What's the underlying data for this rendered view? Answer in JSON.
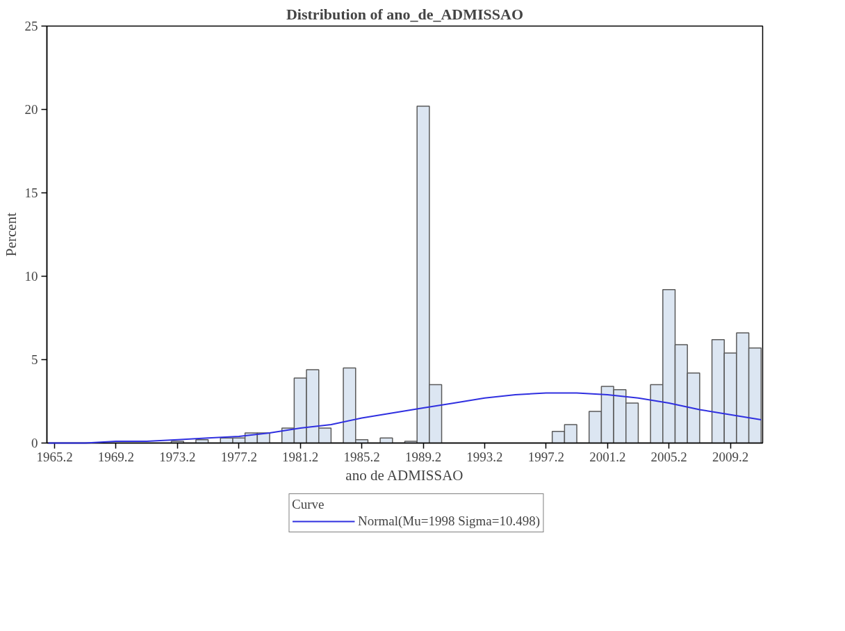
{
  "chart_data": {
    "type": "histogram",
    "title": "Distribution of ano_de_ADMISSAO",
    "xlabel": "ano de ADMISSAO",
    "ylabel": "Percent",
    "legend_title": "Curve",
    "xlim": [
      1964.7,
      2011.3
    ],
    "ylim": [
      0,
      25
    ],
    "xticks": [
      1965.2,
      1969.2,
      1973.2,
      1977.2,
      1981.2,
      1985.2,
      1989.2,
      1993.2,
      1997.2,
      2001.2,
      2005.2,
      2009.2
    ],
    "yticks": [
      0,
      5,
      10,
      15,
      20,
      25
    ],
    "grid": false,
    "legend": "bottom",
    "series": [
      {
        "color": "#dce6f2",
        "bins": [
          1964.8,
          1965.6,
          1966.4,
          1967.2,
          1968.0,
          1968.8,
          1969.6,
          1970.4,
          1971.2,
          1972.0,
          1972.8,
          1973.6,
          1974.4,
          1975.2,
          1976.0,
          1976.8,
          1977.6,
          1978.4,
          1979.2,
          1980.0,
          1980.8,
          1981.6,
          1982.4,
          1983.2,
          1984.0,
          1984.8,
          1985.6,
          1986.4,
          1987.2,
          1988.0,
          1988.8,
          1989.6,
          1990.4,
          1991.2,
          1992.0,
          1992.8,
          1993.6,
          1994.4,
          1995.2,
          1996.0,
          1996.8,
          1997.6,
          1998.4,
          1999.2,
          2000.0,
          2000.8,
          2001.6,
          2002.4,
          2003.2,
          2004.0,
          2004.8,
          2005.6,
          2006.4,
          2007.2,
          2008.0,
          2008.8,
          2009.6,
          2010.4,
          2011.2
        ],
        "values": [
          0,
          0,
          0,
          0,
          0,
          0,
          0,
          0,
          0,
          0,
          0.1,
          0,
          0.2,
          0,
          0.3,
          0.3,
          0.6,
          0.6,
          0,
          0.9,
          3.9,
          4.4,
          0.9,
          0,
          4.5,
          0.2,
          0,
          0.3,
          0,
          0.1,
          20.2,
          3.5,
          0,
          0,
          0,
          0,
          0,
          0,
          0,
          0,
          0,
          0.7,
          1.1,
          0,
          1.9,
          3.4,
          3.2,
          2.4,
          0,
          3.5,
          9.2,
          5.9,
          4.2,
          0,
          6.2,
          5.4,
          6.6,
          5.7
        ]
      },
      {
        "type": "line",
        "name": "Normal(Mu=1998 Sigma=10.498)",
        "color": "#2f2fe0",
        "x": [
          1964.8,
          1967.2,
          1969.2,
          1971.2,
          1973.2,
          1975.2,
          1977.2,
          1979.2,
          1981.2,
          1983.2,
          1985.2,
          1987.2,
          1989.2,
          1991.2,
          1993.2,
          1995.2,
          1997.2,
          1998.0,
          1999.2,
          2001.2,
          2003.2,
          2005.2,
          2007.2,
          2009.2,
          2011.2
        ],
        "values": [
          0.0,
          0.0,
          0.1,
          0.1,
          0.2,
          0.3,
          0.4,
          0.6,
          0.9,
          1.1,
          1.5,
          1.8,
          2.1,
          2.4,
          2.7,
          2.9,
          3.0,
          3.0,
          3.0,
          2.9,
          2.7,
          2.4,
          2.0,
          1.7,
          1.4
        ]
      }
    ]
  }
}
